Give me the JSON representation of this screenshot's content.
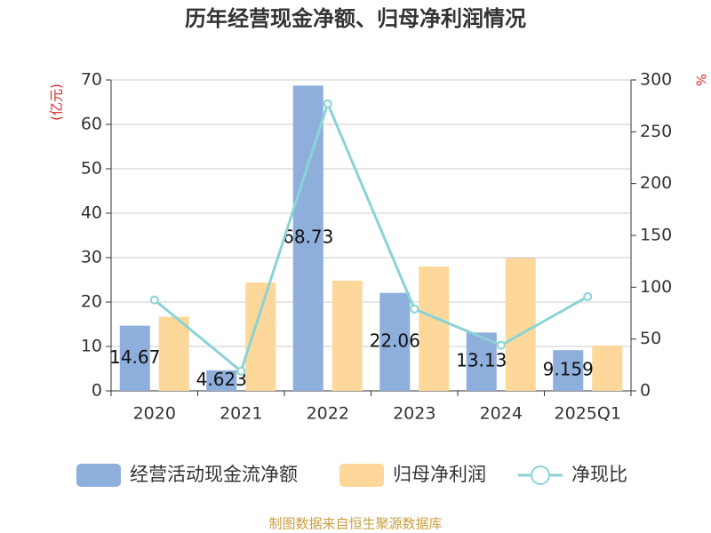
{
  "chart_data": {
    "type": "bar-line",
    "title": "历年经营现金净额、归母净利润情况",
    "y_label": "(亿元)",
    "y2_label": "%",
    "source": "制图数据来自恒生聚源数据库",
    "categories": [
      "2020",
      "2021",
      "2022",
      "2023",
      "2024",
      "2025Q1"
    ],
    "series": [
      {
        "name": "经营活动现金流净额",
        "color": "#8eaedc",
        "type": "bar",
        "values": [
          14.67,
          4.623,
          68.73,
          22.06,
          13.13,
          9.159
        ]
      },
      {
        "name": "归母净利润",
        "color": "#fdd89a",
        "type": "bar",
        "values": [
          16.7,
          24.4,
          24.8,
          28.0,
          29.9,
          10.2
        ]
      },
      {
        "name": "净现比",
        "color": "#8ad3d6",
        "type": "line",
        "axis": "y2",
        "values": [
          87.8,
          19.0,
          277.0,
          79.0,
          44.0,
          91.0
        ]
      }
    ],
    "ylim": [
      0,
      70
    ],
    "yticks": [
      0,
      10,
      20,
      30,
      40,
      50,
      60,
      70
    ],
    "y2lim": [
      0,
      300
    ],
    "y2ticks": [
      0,
      50,
      100,
      150,
      200,
      250,
      300
    ],
    "grid": true
  }
}
